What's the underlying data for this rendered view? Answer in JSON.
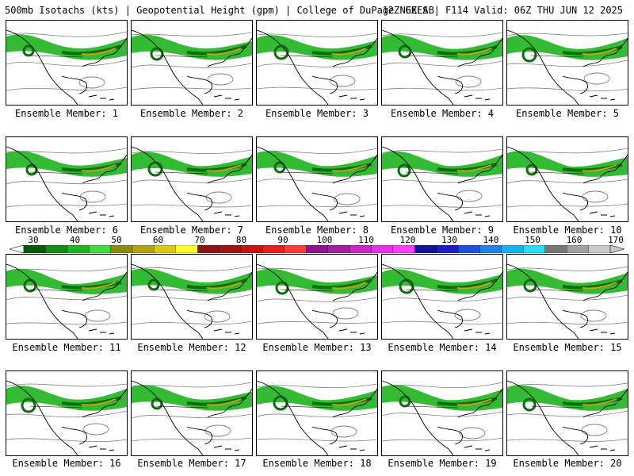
{
  "header": {
    "left": "500mb Isotachs (kts) | Geopotential Height (gpm) | College of DuPage NEXLAB",
    "right": "12Z GEFS | F114 Valid: 06Z THU JUN 12 2025"
  },
  "panels": [
    {
      "label": "Ensemble Member: 1"
    },
    {
      "label": "Ensemble Member: 2"
    },
    {
      "label": "Ensemble Member: 3"
    },
    {
      "label": "Ensemble Member: 4"
    },
    {
      "label": "Ensemble Member: 5"
    },
    {
      "label": "Ensemble Member: 6"
    },
    {
      "label": "Ensemble Member: 7"
    },
    {
      "label": "Ensemble Member: 8"
    },
    {
      "label": "Ensemble Member: 9"
    },
    {
      "label": "Ensemble Member: 10"
    },
    {
      "label": "Ensemble Member: 11"
    },
    {
      "label": "Ensemble Member: 12"
    },
    {
      "label": "Ensemble Member: 13"
    },
    {
      "label": "Ensemble Member: 14"
    },
    {
      "label": "Ensemble Member: 15"
    },
    {
      "label": "Ensemble Member: 16"
    },
    {
      "label": "Ensemble Member: 17"
    },
    {
      "label": "Ensemble Member: 18"
    },
    {
      "label": "Ensemble Member: 19"
    },
    {
      "label": "Ensemble Member: 20"
    }
  ],
  "colorbar": {
    "labels": [
      "30",
      "40",
      "50",
      "60",
      "70",
      "80",
      "90",
      "100",
      "110",
      "120",
      "130",
      "140",
      "150",
      "160",
      "170"
    ],
    "colors": [
      "#0a5a0a",
      "#148c14",
      "#1eb41e",
      "#3cdc3c",
      "#8c8c14",
      "#b4a014",
      "#dcc814",
      "#ffff28",
      "#8c1414",
      "#a01414",
      "#c81414",
      "#e61e1e",
      "#ff3c3c",
      "#8c148c",
      "#a01ea0",
      "#c828c8",
      "#e632e6",
      "#ff3cff",
      "#141496",
      "#1e1ec8",
      "#1e50dc",
      "#1e82e6",
      "#14b4f0",
      "#28dcff",
      "#787878",
      "#a0a0a0",
      "#c8c8c8"
    ]
  },
  "map_colors": {
    "land": "#000000",
    "jet_light": "#1eb41e",
    "jet_dark": "#0a6e0a",
    "jet_core": "#c8a014",
    "height": "#808080"
  }
}
